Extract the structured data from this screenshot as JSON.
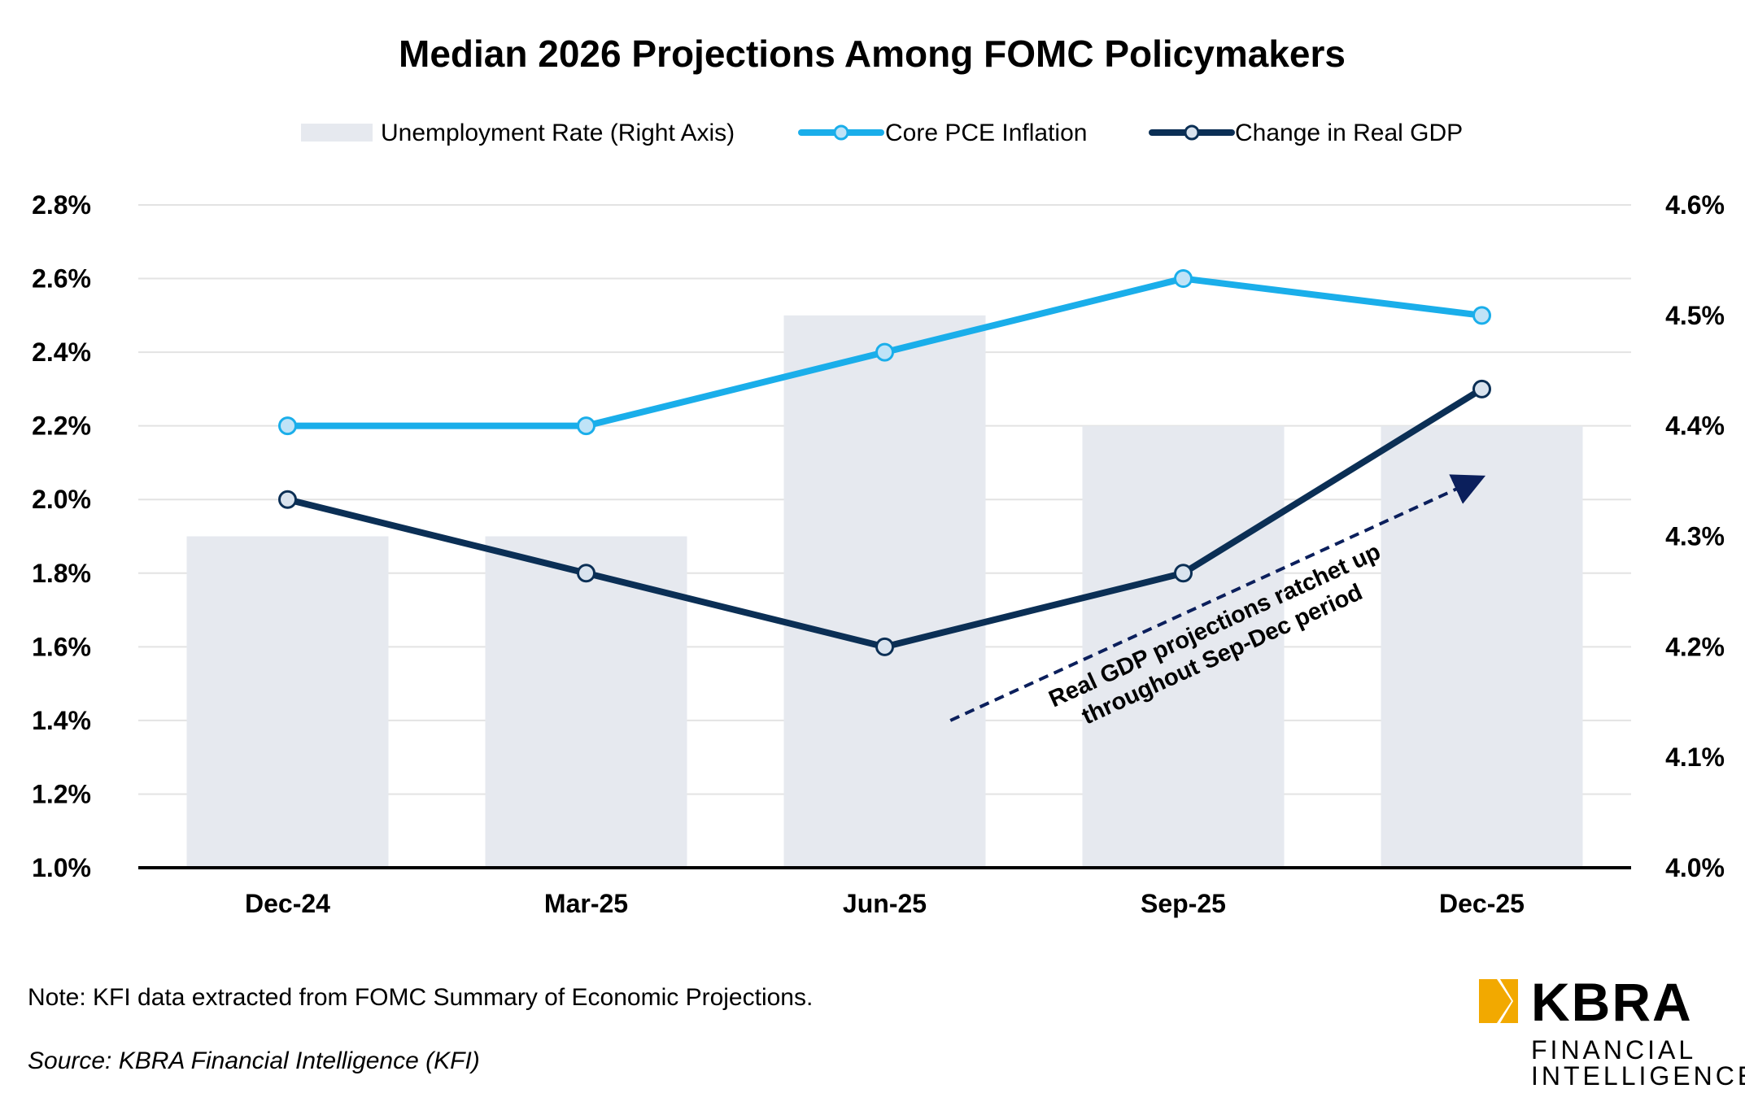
{
  "chart_data": {
    "type": "bar+line",
    "title": "Median 2026 Projections Among FOMC Policymakers",
    "categories": [
      "Dec-24",
      "Mar-25",
      "Jun-25",
      "Sep-25",
      "Dec-25"
    ],
    "series": [
      {
        "name": "Unemployment Rate (Right Axis)",
        "kind": "bar",
        "axis": "right",
        "color": "#E6E9EF",
        "values": [
          4.3,
          4.3,
          4.5,
          4.4,
          4.4
        ]
      },
      {
        "name": "Core PCE Inflation",
        "kind": "line",
        "axis": "left",
        "color": "#1AAEEA",
        "values": [
          2.2,
          2.2,
          2.4,
          2.6,
          2.5
        ]
      },
      {
        "name": "Change in Real GDP",
        "kind": "line",
        "axis": "left",
        "color": "#0B2F55",
        "values": [
          2.0,
          1.8,
          1.6,
          1.8,
          2.3
        ]
      }
    ],
    "left_axis": {
      "ylim": [
        1.0,
        2.8
      ],
      "ticks": [
        "1.0%",
        "1.2%",
        "1.4%",
        "1.6%",
        "1.8%",
        "2.0%",
        "2.2%",
        "2.4%",
        "2.6%",
        "2.8%"
      ]
    },
    "right_axis": {
      "ylim": [
        4.0,
        4.6
      ],
      "ticks": [
        "4.0%",
        "4.1%",
        "4.2%",
        "4.3%",
        "4.4%",
        "4.5%",
        "4.6%"
      ]
    },
    "legend_position": "top-center",
    "grid": true,
    "annotation": {
      "lines": [
        "Real GDP projections ratchet up",
        "throughout Sep-Dec period"
      ],
      "arrow_from": {
        "category_offset": 2.22,
        "value": 1.4
      },
      "arrow_to": {
        "category_offset": 4.0,
        "value": 2.05
      }
    }
  },
  "footer": {
    "note": "Note: KFI data extracted from FOMC Summary of Economic Projections.",
    "source": "Source: KBRA Financial Intelligence (KFI)"
  },
  "logo": {
    "name": "KBRA",
    "line1": "FINANCIAL",
    "line2": "INTELLIGENCE",
    "accent_color": "#F2A900"
  }
}
